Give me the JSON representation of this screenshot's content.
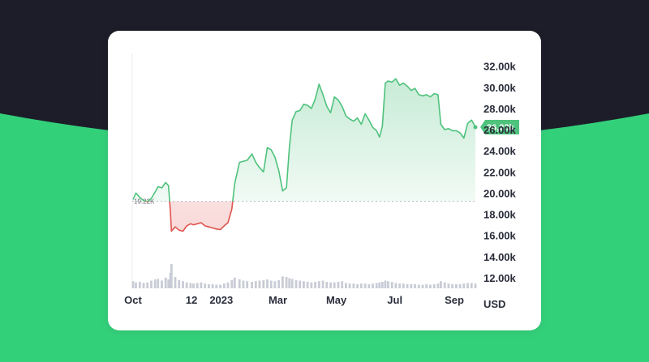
{
  "theme": {
    "page_background": "#1c1d29",
    "band_color": "#33d07a",
    "card_background": "#ffffff",
    "up_color": "#4fc27d",
    "down_color": "#e0544f",
    "volume_color": "#c9ccd6"
  },
  "chart_data": {
    "type": "area",
    "currency": "USD",
    "baseline_label": "19.22K",
    "baseline_value": 19220,
    "last_value": 26230,
    "last_value_label": "26,23k",
    "ylim": [
      11000,
      33200
    ],
    "y_ticks": [
      {
        "value": 32000,
        "label": "32.00k"
      },
      {
        "value": 30000,
        "label": "30.00k"
      },
      {
        "value": 28000,
        "label": "28.00k"
      },
      {
        "value": 26000,
        "label": "26.00k"
      },
      {
        "value": 24000,
        "label": "24.00k"
      },
      {
        "value": 22000,
        "label": "22.00k"
      },
      {
        "value": 20000,
        "label": "20.00k"
      },
      {
        "value": 18000,
        "label": "18.00k"
      },
      {
        "value": 16000,
        "label": "16.00k"
      },
      {
        "value": 14000,
        "label": "14.00k"
      },
      {
        "value": 12000,
        "label": "12.00k"
      }
    ],
    "x_ticks": [
      {
        "x": "2022-10-01",
        "label": "Oct"
      },
      {
        "x": "2022-12-01",
        "label": "12"
      },
      {
        "x": "2023-01-01",
        "label": "2023"
      },
      {
        "x": "2023-03-01",
        "label": "Mar"
      },
      {
        "x": "2023-05-01",
        "label": "May"
      },
      {
        "x": "2023-07-01",
        "label": "Jul"
      },
      {
        "x": "2023-09-01",
        "label": "Sep"
      }
    ],
    "x": [
      "2022-10-01",
      "2022-10-04",
      "2022-10-08",
      "2022-10-12",
      "2022-10-16",
      "2022-10-20",
      "2022-10-24",
      "2022-10-27",
      "2022-10-31",
      "2022-11-04",
      "2022-11-07",
      "2022-11-09",
      "2022-11-10",
      "2022-11-14",
      "2022-11-18",
      "2022-11-22",
      "2022-11-26",
      "2022-11-30",
      "2022-12-03",
      "2022-12-07",
      "2022-12-11",
      "2022-12-15",
      "2022-12-19",
      "2022-12-23",
      "2022-12-27",
      "2022-12-31",
      "2023-01-04",
      "2023-01-08",
      "2023-01-12",
      "2023-01-15",
      "2023-01-20",
      "2023-01-24",
      "2023-01-28",
      "2023-02-02",
      "2023-02-06",
      "2023-02-10",
      "2023-02-14",
      "2023-02-18",
      "2023-02-22",
      "2023-02-26",
      "2023-03-02",
      "2023-03-06",
      "2023-03-10",
      "2023-03-13",
      "2023-03-16",
      "2023-03-20",
      "2023-03-24",
      "2023-03-28",
      "2023-04-01",
      "2023-04-05",
      "2023-04-09",
      "2023-04-13",
      "2023-04-17",
      "2023-04-21",
      "2023-04-25",
      "2023-04-29",
      "2023-05-03",
      "2023-05-07",
      "2023-05-11",
      "2023-05-15",
      "2023-05-19",
      "2023-05-23",
      "2023-05-27",
      "2023-05-31",
      "2023-06-04",
      "2023-06-08",
      "2023-06-12",
      "2023-06-15",
      "2023-06-18",
      "2023-06-21",
      "2023-06-24",
      "2023-06-28",
      "2023-07-02",
      "2023-07-06",
      "2023-07-10",
      "2023-07-14",
      "2023-07-18",
      "2023-07-22",
      "2023-07-26",
      "2023-07-30",
      "2023-08-03",
      "2023-08-07",
      "2023-08-11",
      "2023-08-15",
      "2023-08-18",
      "2023-08-22",
      "2023-08-26",
      "2023-08-30",
      "2023-09-03",
      "2023-09-07",
      "2023-09-11",
      "2023-09-15",
      "2023-09-19",
      "2023-09-23"
    ],
    "series": [
      {
        "values": [
          19400,
          20000,
          19600,
          19300,
          19200,
          19500,
          20100,
          20600,
          20500,
          21000,
          20700,
          18200,
          16400,
          16800,
          16500,
          16400,
          16900,
          17100,
          17000,
          17100,
          17200,
          16900,
          16800,
          16700,
          16600,
          16550,
          16900,
          17200,
          18500,
          20900,
          22900,
          23000,
          23100,
          23700,
          22900,
          22400,
          22000,
          24300,
          24100,
          23400,
          22100,
          20200,
          20500,
          24300,
          26900,
          27700,
          27800,
          28400,
          28300,
          28000,
          28900,
          30300,
          29300,
          28200,
          27600,
          29100,
          28800,
          28200,
          27300,
          27000,
          26800,
          27100,
          26500,
          27500,
          26900,
          26200,
          25900,
          25300,
          26300,
          30400,
          30600,
          30500,
          30800,
          30200,
          30400,
          30100,
          29700,
          29900,
          29300,
          29200,
          29300,
          29100,
          29400,
          29300,
          26500,
          26000,
          26100,
          25900,
          25900,
          25700,
          25200,
          26600,
          26900,
          26230
        ]
      }
    ],
    "volume": [
      1.2,
      1.0,
      1.1,
      0.9,
      1.0,
      1.3,
      1.5,
      1.6,
      1.3,
      1.8,
      1.5,
      2.6,
      4.1,
      1.9,
      1.4,
      1.2,
      1.0,
      0.9,
      0.8,
      0.9,
      1.0,
      0.8,
      0.7,
      0.7,
      0.6,
      0.6,
      0.8,
      1.0,
      1.4,
      1.8,
      1.5,
      1.3,
      1.2,
      1.1,
      1.2,
      1.3,
      1.4,
      1.5,
      1.3,
      1.2,
      1.4,
      2.0,
      1.9,
      1.7,
      1.6,
      1.4,
      1.3,
      1.2,
      1.1,
      1.0,
      1.1,
      1.2,
      1.3,
      1.1,
      1.0,
      1.0,
      1.1,
      1.2,
      0.9,
      0.8,
      0.8,
      0.7,
      0.8,
      0.8,
      0.7,
      0.8,
      0.9,
      1.0,
      1.1,
      1.3,
      1.2,
      1.1,
      0.9,
      0.8,
      0.8,
      0.7,
      0.7,
      0.7,
      0.6,
      0.6,
      0.7,
      0.6,
      0.7,
      0.8,
      1.2,
      1.0,
      0.8,
      0.7,
      0.7,
      0.7,
      0.8,
      0.9,
      0.9,
      0.8
    ]
  }
}
